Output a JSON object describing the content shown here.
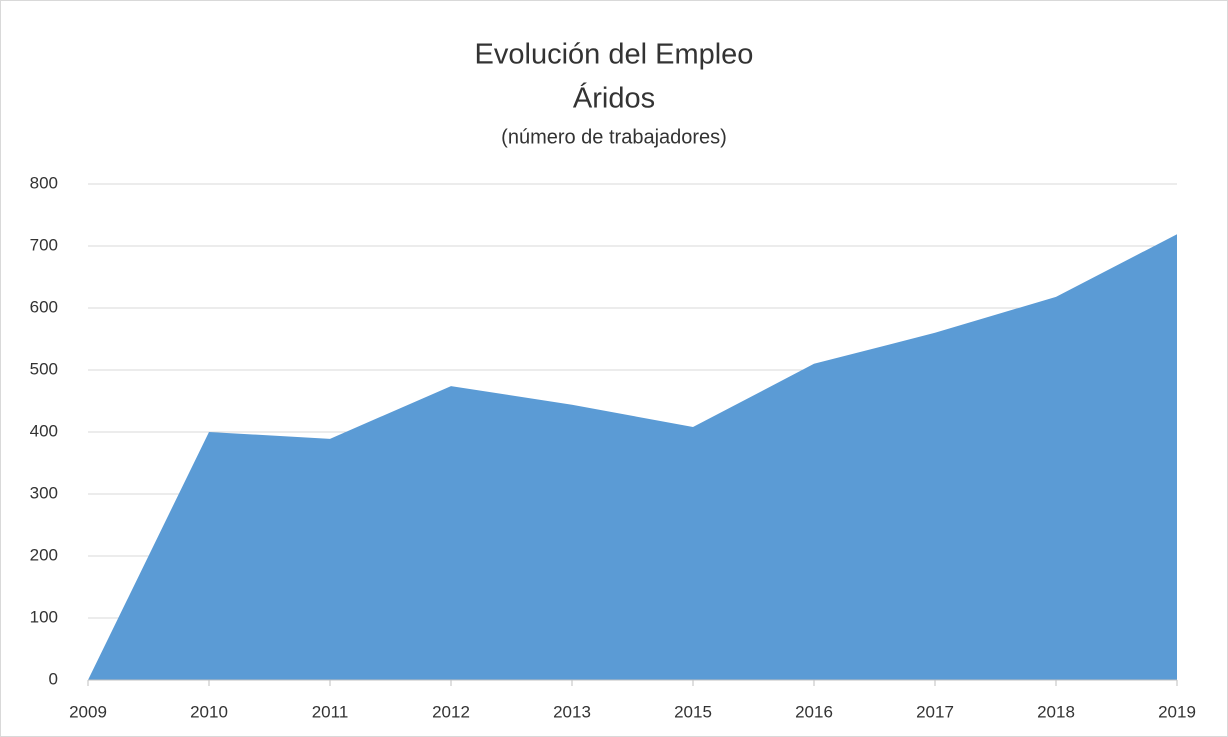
{
  "chart_data": {
    "type": "area",
    "title": "Evolución del Empleo",
    "subtitle": "Áridos",
    "unit_label": "(número de trabajadores)",
    "categories": [
      "2009",
      "2010",
      "2011",
      "2012",
      "2013",
      "2015",
      "2016",
      "2017",
      "2018",
      "2019"
    ],
    "values": [
      0,
      400,
      389,
      474,
      444,
      408,
      510,
      560,
      618,
      719
    ],
    "color": "#5b9bd5",
    "ylim": [
      0,
      800
    ],
    "yticks": [
      0,
      100,
      200,
      300,
      400,
      500,
      600,
      700,
      800
    ],
    "grid": true
  }
}
